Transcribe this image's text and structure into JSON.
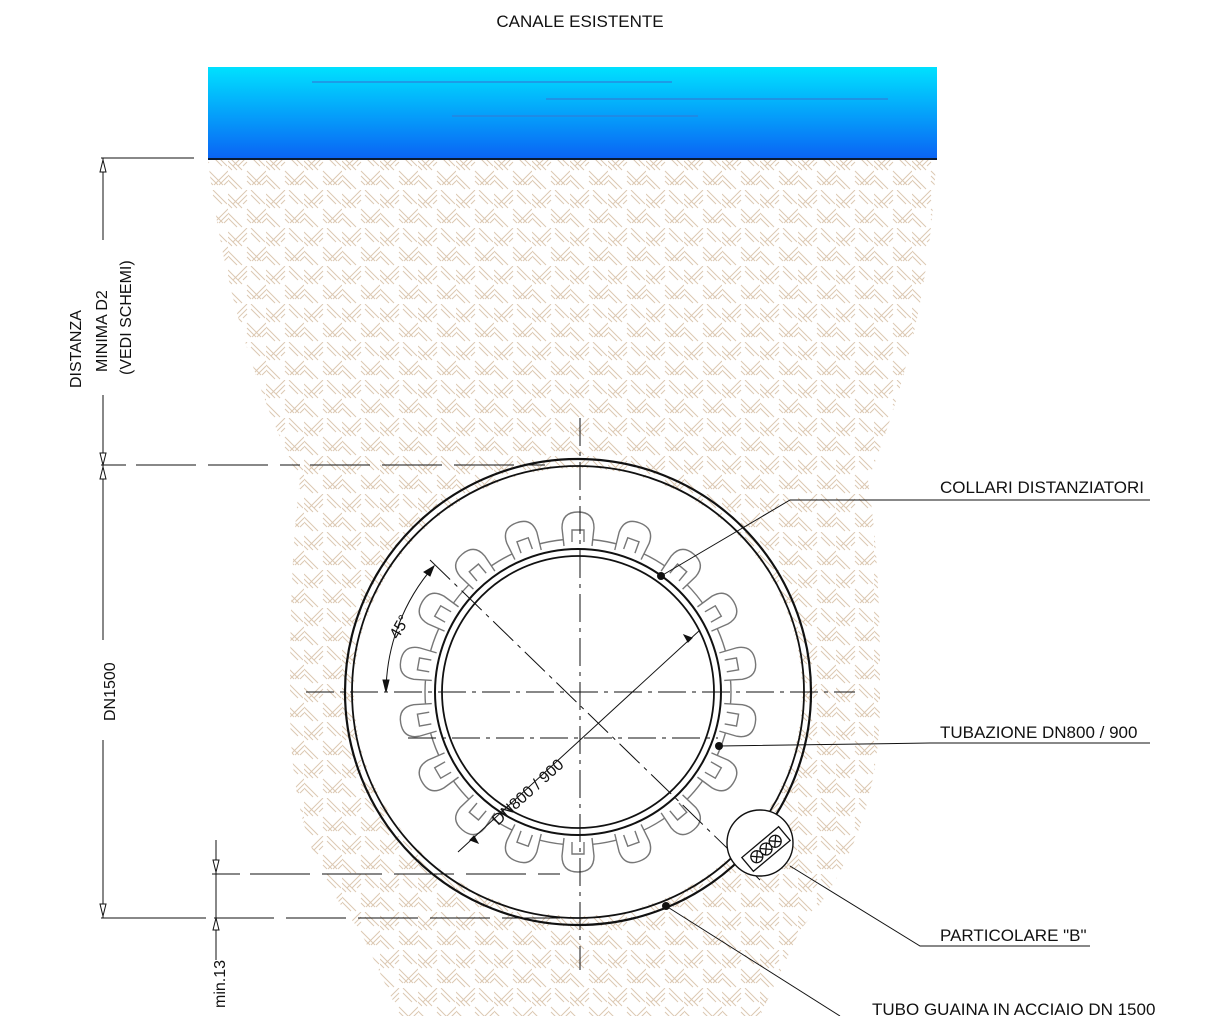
{
  "title": "CANALE ESISTENTE",
  "callouts": {
    "collari": "COLLARI DISTANZIATORI",
    "tubazione": "TUBAZIONE DN800 / 900",
    "particolare": "PARTICOLARE \"B\"",
    "tubo_guaina": "TUBO GUAINA IN ACCIAIO DN 1500"
  },
  "dimensions": {
    "distanza_line1": "DISTANZA",
    "distanza_line2": "MINIMA D2",
    "distanza_line3": "(VEDI SCHEMI)",
    "dn1500": "DN1500",
    "min13": "min.13",
    "angle": "45°",
    "inner_pipe": "DN800 / 900"
  },
  "colors": {
    "water_top": "#00e1ff",
    "water_bottom": "#0a63f5",
    "soil_hatch": "#d9c6b0",
    "line": "#111111",
    "spacer": "#777777"
  }
}
